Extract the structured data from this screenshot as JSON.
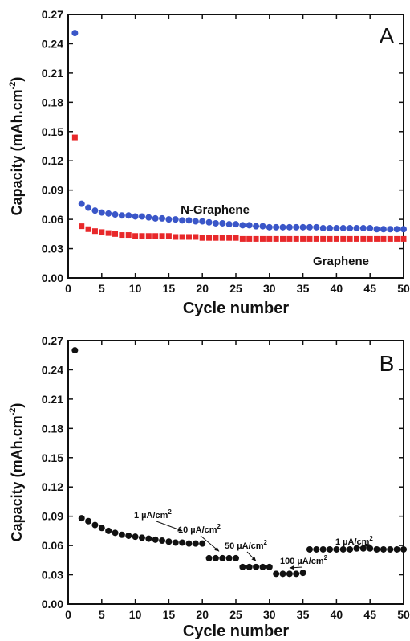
{
  "chart_data": [
    {
      "type": "scatter",
      "panel": "A",
      "xlabel": "Cycle number",
      "ylabel": "Capacity (mAh.cm",
      "ylabel_sup": "-2",
      "ylabel_end": ")",
      "xlim": [
        0,
        50
      ],
      "ylim": [
        0,
        0.27
      ],
      "xticks": [
        "0",
        "5",
        "10",
        "15",
        "20",
        "25",
        "30",
        "35",
        "40",
        "45",
        "50"
      ],
      "yticks": [
        "0.00",
        "0.03",
        "0.06",
        "0.09",
        "0.12",
        "0.15",
        "0.18",
        "0.21",
        "0.24",
        "0.27"
      ],
      "grid": false,
      "series": [
        {
          "name": "N-Graphene",
          "color": "#3a56c8",
          "x": [
            1,
            2,
            3,
            4,
            5,
            6,
            7,
            8,
            9,
            10,
            11,
            12,
            13,
            14,
            15,
            16,
            17,
            18,
            19,
            20,
            21,
            22,
            23,
            24,
            25,
            26,
            27,
            28,
            29,
            30,
            31,
            32,
            33,
            34,
            35,
            36,
            37,
            38,
            39,
            40,
            41,
            42,
            43,
            44,
            45,
            46,
            47,
            48,
            49,
            50
          ],
          "values": [
            0.251,
            0.076,
            0.072,
            0.069,
            0.067,
            0.066,
            0.065,
            0.064,
            0.064,
            0.063,
            0.063,
            0.062,
            0.061,
            0.061,
            0.06,
            0.06,
            0.059,
            0.059,
            0.058,
            0.058,
            0.057,
            0.056,
            0.056,
            0.055,
            0.055,
            0.054,
            0.054,
            0.053,
            0.053,
            0.052,
            0.052,
            0.052,
            0.052,
            0.052,
            0.052,
            0.052,
            0.052,
            0.051,
            0.051,
            0.051,
            0.051,
            0.051,
            0.051,
            0.051,
            0.051,
            0.05,
            0.05,
            0.05,
            0.05,
            0.05
          ]
        },
        {
          "name": "Graphene",
          "color": "#e8282a",
          "x": [
            1,
            2,
            3,
            4,
            5,
            6,
            7,
            8,
            9,
            10,
            11,
            12,
            13,
            14,
            15,
            16,
            17,
            18,
            19,
            20,
            21,
            22,
            23,
            24,
            25,
            26,
            27,
            28,
            29,
            30,
            31,
            32,
            33,
            34,
            35,
            36,
            37,
            38,
            39,
            40,
            41,
            42,
            43,
            44,
            45,
            46,
            47,
            48,
            49,
            50
          ],
          "values": [
            0.144,
            0.053,
            0.05,
            0.048,
            0.047,
            0.046,
            0.045,
            0.044,
            0.044,
            0.043,
            0.043,
            0.043,
            0.043,
            0.043,
            0.043,
            0.042,
            0.042,
            0.042,
            0.042,
            0.041,
            0.041,
            0.041,
            0.041,
            0.041,
            0.041,
            0.04,
            0.04,
            0.04,
            0.04,
            0.04,
            0.04,
            0.04,
            0.04,
            0.04,
            0.04,
            0.04,
            0.04,
            0.04,
            0.04,
            0.04,
            0.04,
            0.04,
            0.04,
            0.04,
            0.04,
            0.04,
            0.04,
            0.04,
            0.04,
            0.04
          ]
        }
      ]
    },
    {
      "type": "scatter",
      "panel": "B",
      "xlabel": "Cycle number",
      "ylabel": "Capacity (mAh.cm",
      "ylabel_sup": "-2",
      "ylabel_end": ")",
      "xlim": [
        0,
        50
      ],
      "ylim": [
        0,
        0.27
      ],
      "xticks": [
        "0",
        "5",
        "10",
        "15",
        "20",
        "25",
        "30",
        "35",
        "40",
        "45",
        "50"
      ],
      "yticks": [
        "0.00",
        "0.03",
        "0.06",
        "0.09",
        "0.12",
        "0.15",
        "0.18",
        "0.21",
        "0.24",
        "0.27"
      ],
      "grid": false,
      "series": [
        {
          "color": "#111111",
          "x": [
            1,
            2,
            3,
            4,
            5,
            6,
            7,
            8,
            9,
            10,
            11,
            12,
            13,
            14,
            15,
            16,
            17,
            18,
            19,
            20,
            21,
            22,
            23,
            24,
            25,
            26,
            27,
            28,
            29,
            30,
            31,
            32,
            33,
            34,
            35,
            36,
            37,
            38,
            39,
            40,
            41,
            42,
            43,
            44,
            45,
            46,
            47,
            48,
            49,
            50
          ],
          "values": [
            0.26,
            0.088,
            0.085,
            0.081,
            0.078,
            0.075,
            0.073,
            0.071,
            0.07,
            0.069,
            0.068,
            0.067,
            0.066,
            0.065,
            0.064,
            0.063,
            0.063,
            0.062,
            0.062,
            0.062,
            0.047,
            0.047,
            0.047,
            0.047,
            0.047,
            0.038,
            0.038,
            0.038,
            0.038,
            0.038,
            0.031,
            0.031,
            0.031,
            0.031,
            0.032,
            0.056,
            0.056,
            0.056,
            0.056,
            0.056,
            0.056,
            0.056,
            0.057,
            0.057,
            0.057,
            0.056,
            0.056,
            0.056,
            0.056,
            0.056
          ]
        }
      ],
      "annotations": [
        {
          "text": "1 µA/cm",
          "sup": "2",
          "x": 17.0,
          "y": 0.075
        },
        {
          "text": "10 µA/cm",
          "sup": "2",
          "x": 22.5,
          "y": 0.054
        },
        {
          "text": "50 µA/cm",
          "sup": "2",
          "x": 28.0,
          "y": 0.044
        },
        {
          "text": "100 µA/cm",
          "sup": "2",
          "x": 33.0,
          "y": 0.037
        },
        {
          "text": "1 µA/cm",
          "sup": "2",
          "x": 45.0,
          "y": 0.061
        }
      ]
    }
  ]
}
